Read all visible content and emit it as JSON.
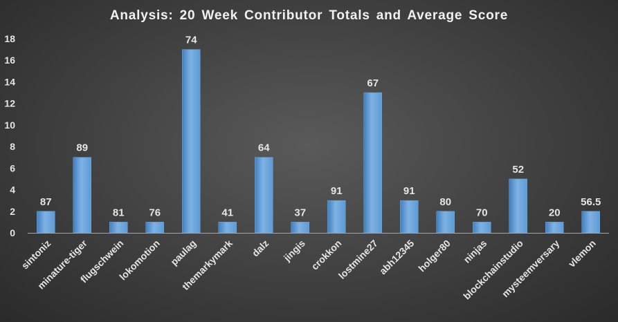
{
  "chart_data": {
    "type": "bar",
    "title": "Analysis:  20 Week Contributor Totals and Average Score",
    "categories": [
      "sintoniz",
      "minature-tiger",
      "flugschwein",
      "lokomotion",
      "paulag",
      "themarkymark",
      "dalz",
      "jingis",
      "crokkon",
      "lostmine27",
      "abh12345",
      "holger80",
      "ninjas",
      "blockchainstudio",
      "mysteemversary",
      "vlemon"
    ],
    "values": [
      2,
      7,
      1,
      1,
      17,
      1,
      7,
      1,
      3,
      13,
      3,
      2,
      1,
      5,
      1,
      2
    ],
    "data_labels": [
      "87",
      "89",
      "81",
      "76",
      "74",
      "41",
      "64",
      "37",
      "91",
      "67",
      "91",
      "80",
      "70",
      "52",
      "20",
      "56.5"
    ],
    "ylim": [
      0,
      18
    ],
    "yticks": [
      0,
      2,
      4,
      6,
      8,
      10,
      12,
      14,
      16,
      18
    ],
    "xlabel": "",
    "ylabel": "",
    "grid": false,
    "legend": false,
    "colors": {
      "bar": "#5b9bd5",
      "bar_light": "#7fb2e3",
      "bar_dark": "#3f7fbf",
      "text": "#e6e6e6",
      "axis": "#a6a6a6"
    }
  }
}
